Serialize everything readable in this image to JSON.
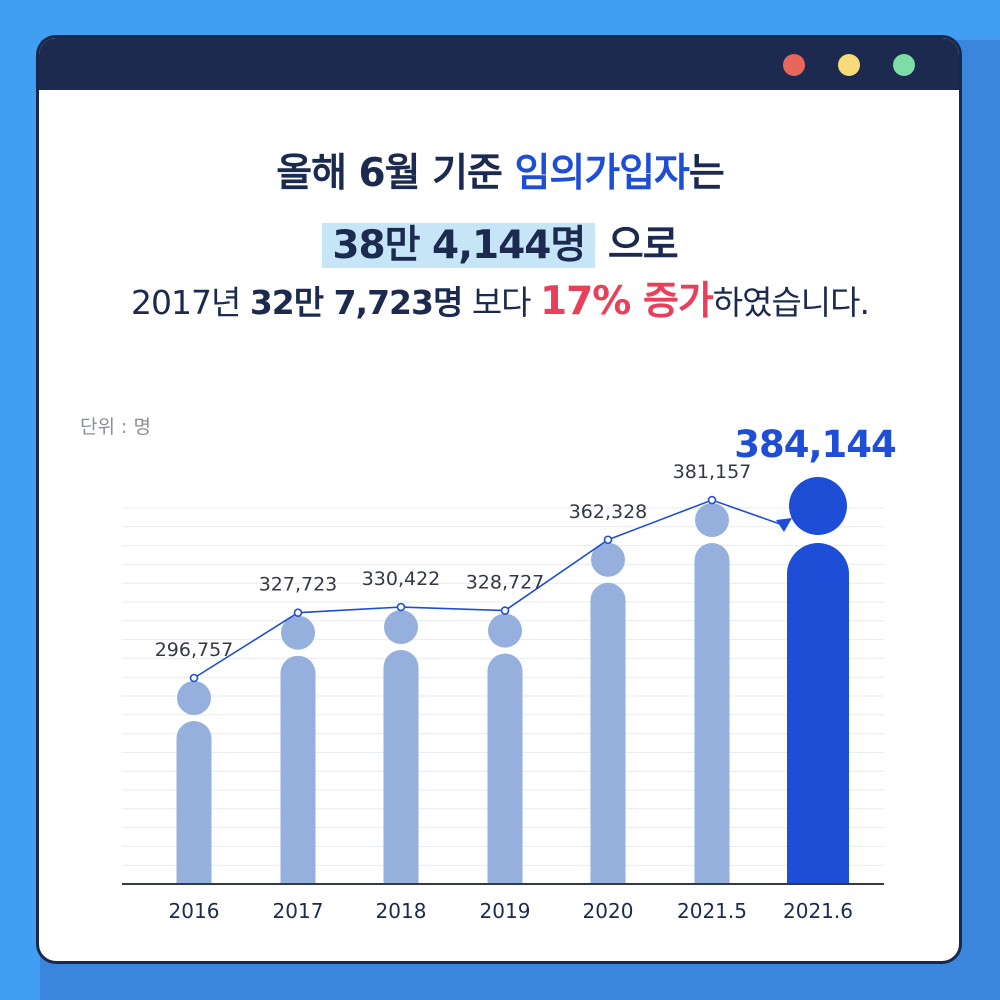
{
  "window": {
    "dots": [
      {
        "name": "close-dot",
        "color": "#e8675a"
      },
      {
        "name": "minimize-dot",
        "color": "#f7da7a"
      },
      {
        "name": "maximize-dot",
        "color": "#7fdca8"
      }
    ]
  },
  "headline": {
    "line1_pre": "올해 6월 기준 ",
    "line1_highlight": "임의가입자",
    "line1_post": "는",
    "line2_highlight": "38만 4,144명",
    "line2_post": " 으로"
  },
  "subline": {
    "pre": "2017년 ",
    "bold": "32만 7,723명",
    "mid": " 보다 ",
    "red": "17% 증가",
    "post": "하였습니다."
  },
  "unit_label": "단위 : 명",
  "chart_data": {
    "type": "bar",
    "categories": [
      "2016",
      "2017",
      "2018",
      "2019",
      "2020",
      "2021.5",
      "2021.6"
    ],
    "values": [
      296757,
      327723,
      330422,
      328727,
      362328,
      381157,
      384144
    ],
    "data_labels": [
      "296,757",
      "327,723",
      "330,422",
      "328,727",
      "362,328",
      "381,157",
      "384,144"
    ],
    "highlight_index": 6,
    "colors": {
      "bar": "#95b0dc",
      "highlight": "#1f4ed6",
      "line": "#1f4ed6",
      "label": "#333a45"
    },
    "grid": true,
    "ylim": [
      200000,
      400000
    ]
  }
}
